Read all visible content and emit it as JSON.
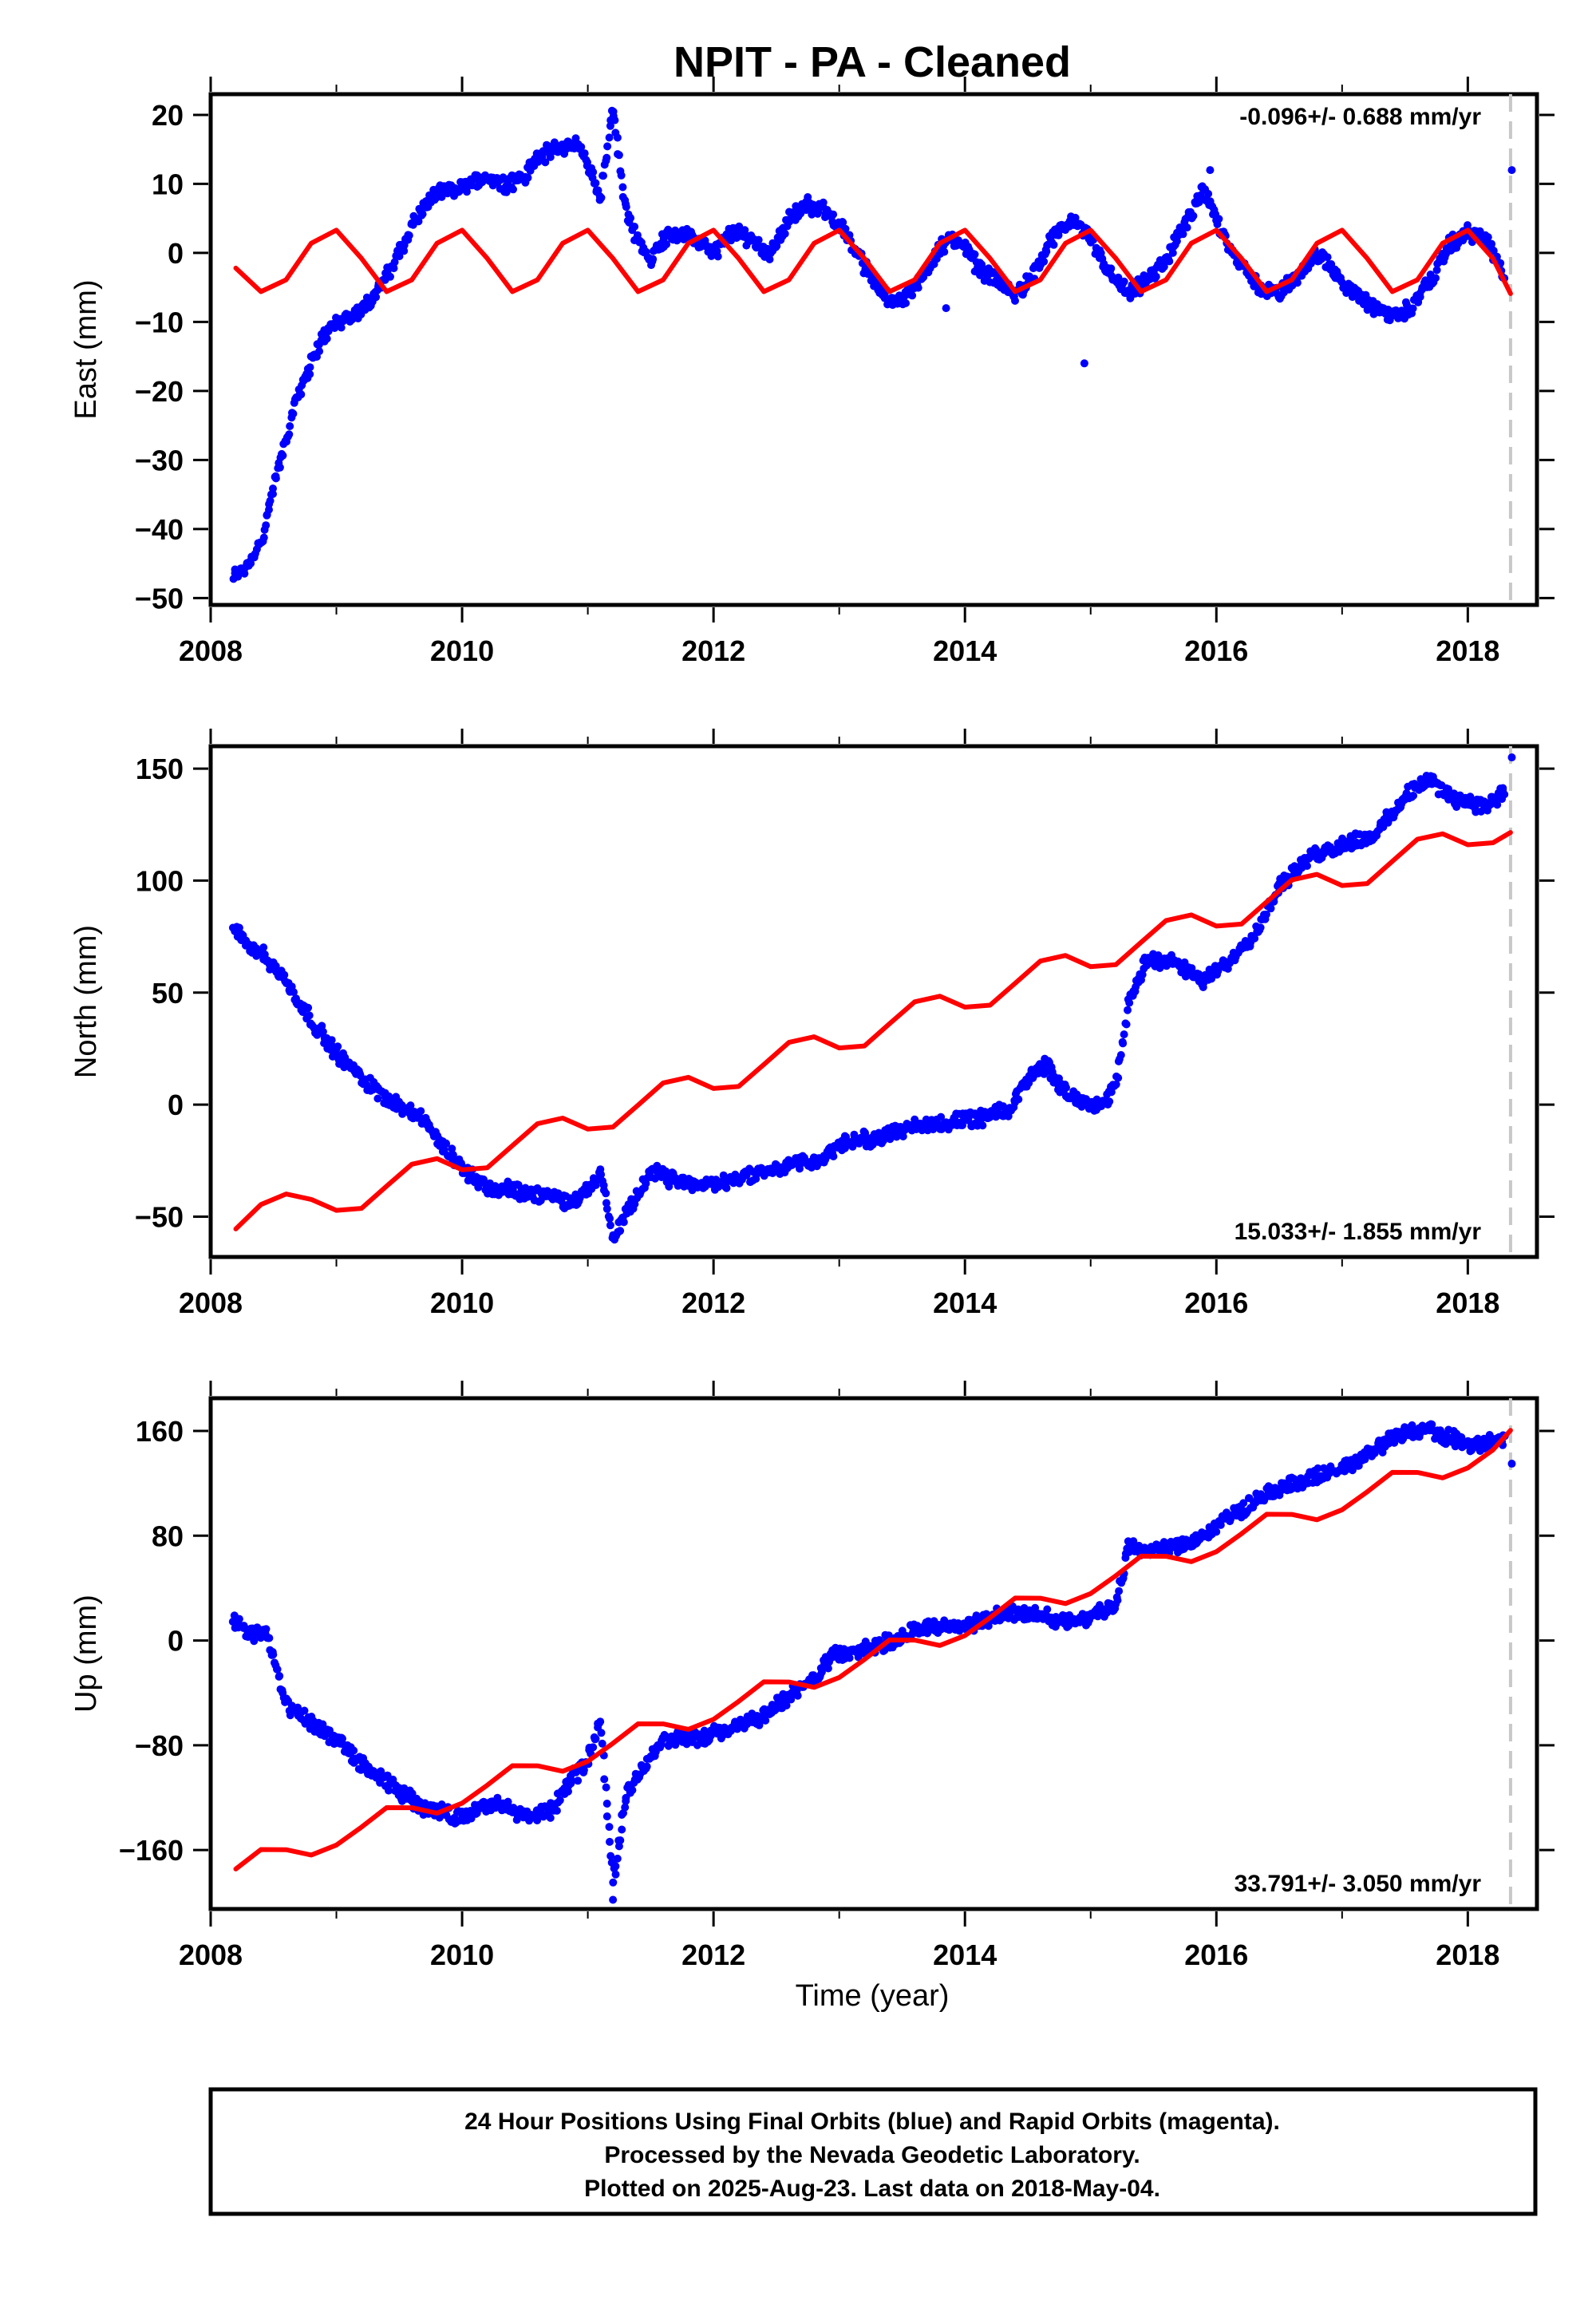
{
  "title": "NPIT  - PA - Cleaned",
  "xlabel": "Time (year)",
  "footer": {
    "line1": "24 Hour Positions Using Final Orbits (blue) and Rapid Orbits (magenta).",
    "line2": "Processed by the Nevada Geodetic Laboratory.",
    "line3": "Plotted on 2025-Aug-23. Last data on 2018-May-04."
  },
  "colors": {
    "observations": "#0000ff",
    "model": "#ff0000",
    "last_data_line": "#c8c8c8"
  },
  "chart_data": [
    {
      "type": "scatter",
      "component": "east",
      "ylabel": "East (mm)",
      "rate_label": "-0.096+/- 0.688 mm/yr",
      "rate_position": "top-right",
      "xlim": [
        2008.0,
        2018.55
      ],
      "ylim": [
        -51,
        23
      ],
      "xticks": [
        2008,
        2010,
        2012,
        2014,
        2016,
        2018
      ],
      "xtick_labels": [
        "2008",
        "2010",
        "2012",
        "2014",
        "2016",
        "2018"
      ],
      "yticks": [
        -50,
        -40,
        -30,
        -20,
        -10,
        0,
        10,
        20
      ],
      "ytick_labels": [
        "−50",
        "−40",
        "−30",
        "−20",
        "−10",
        "0",
        "10",
        "20"
      ],
      "last_data": 2018.34,
      "observations": {
        "name": "Final Orbits",
        "x": [
          2008.18,
          2008.3,
          2008.42,
          2008.5,
          2008.6,
          2008.7,
          2008.8,
          2008.9,
          2009.0,
          2009.15,
          2009.3,
          2009.45,
          2009.6,
          2009.75,
          2009.9,
          2010.05,
          2010.2,
          2010.35,
          2010.5,
          2010.6,
          2010.75,
          2010.9,
          2011.0,
          2011.1,
          2011.2,
          2011.3,
          2011.4,
          2011.5,
          2011.6,
          2011.7,
          2011.85,
          2012.0,
          2012.15,
          2012.3,
          2012.45,
          2012.6,
          2012.75,
          2012.9,
          2013.05,
          2013.2,
          2013.35,
          2013.5,
          2013.65,
          2013.8,
          2013.95,
          2014.1,
          2014.25,
          2014.4,
          2014.55,
          2014.7,
          2014.85,
          2015.0,
          2015.15,
          2015.3,
          2015.45,
          2015.6,
          2015.75,
          2015.9,
          2016.05,
          2016.2,
          2016.35,
          2016.5,
          2016.65,
          2016.8,
          2016.95,
          2017.1,
          2017.25,
          2017.4,
          2017.55,
          2017.7,
          2017.85,
          2018.0,
          2018.15,
          2018.3
        ],
        "y": [
          -47,
          -45,
          -41,
          -34,
          -27,
          -20,
          -16,
          -12,
          -10,
          -9,
          -6,
          -2,
          4,
          8,
          9,
          10,
          11,
          10,
          11,
          14,
          15,
          16,
          13,
          8,
          21,
          6,
          2,
          -1,
          2,
          3,
          2,
          0,
          3,
          2,
          0,
          5,
          7,
          6,
          3,
          -2,
          -6,
          -7,
          -4,
          1,
          2,
          -2,
          -4,
          -6,
          -3,
          2,
          5,
          2,
          -3,
          -6,
          -4,
          -1,
          4,
          9,
          3,
          -2,
          -5,
          -6,
          -3,
          0,
          -3,
          -6,
          -8,
          -9,
          -8,
          -4,
          1,
          3,
          2,
          -4
        ],
        "outliers": [
          {
            "x": 2014.95,
            "y": -16
          },
          {
            "x": 2013.85,
            "y": -8
          },
          {
            "x": 2015.95,
            "y": 12
          },
          {
            "x": 2018.35,
            "y": 12
          }
        ]
      },
      "model": {
        "name": "Rapid Orbits",
        "x": [
          2008.2,
          2008.4,
          2008.6,
          2008.8,
          2009.0,
          2009.2,
          2009.4,
          2009.6,
          2009.8,
          2010.0,
          2010.2,
          2010.4,
          2010.6,
          2010.8,
          2011.0,
          2011.2,
          2011.4,
          2011.6,
          2011.8,
          2012.0,
          2012.2,
          2012.4,
          2012.6,
          2012.8,
          2013.0,
          2013.2,
          2013.4,
          2013.6,
          2013.8,
          2014.0,
          2014.2,
          2014.4,
          2014.6,
          2014.8,
          2015.0,
          2015.2,
          2015.4,
          2015.6,
          2015.8,
          2016.0,
          2016.2,
          2016.4,
          2016.6,
          2016.8,
          2017.0,
          2017.2,
          2017.4,
          2017.6,
          2017.8,
          2018.0,
          2018.2,
          2018.34
        ],
        "y": [
          -2.2,
          -5.6,
          -3.9,
          1.4,
          3.3,
          -0.8,
          -5.6,
          -3.9,
          1.4,
          3.3,
          -0.8,
          -5.6,
          -3.9,
          1.4,
          3.3,
          -0.8,
          -5.6,
          -3.9,
          1.4,
          3.3,
          -0.8,
          -5.6,
          -3.9,
          1.4,
          3.3,
          -0.8,
          -5.6,
          -3.9,
          1.4,
          3.3,
          -0.8,
          -5.6,
          -3.9,
          1.4,
          3.3,
          -0.8,
          -5.6,
          -3.9,
          1.4,
          3.3,
          -0.8,
          -5.6,
          -3.9,
          1.4,
          3.3,
          -0.8,
          -5.6,
          -3.9,
          1.4,
          3.3,
          -0.8,
          -5.9
        ]
      }
    },
    {
      "type": "scatter",
      "component": "north",
      "ylabel": "North (mm)",
      "rate_label": "15.033+/- 1.855 mm/yr",
      "rate_position": "bottom-right",
      "xlim": [
        2008.0,
        2018.55
      ],
      "ylim": [
        -68,
        160
      ],
      "xticks": [
        2008,
        2010,
        2012,
        2014,
        2016,
        2018
      ],
      "xtick_labels": [
        "2008",
        "2010",
        "2012",
        "2014",
        "2016",
        "2018"
      ],
      "yticks": [
        -50,
        0,
        50,
        100,
        150
      ],
      "ytick_labels": [
        "−50",
        "0",
        "50",
        "100",
        "150"
      ],
      "last_data": 2018.34,
      "observations": {
        "name": "Final Orbits",
        "x": [
          2008.18,
          2008.3,
          2008.45,
          2008.6,
          2008.75,
          2008.9,
          2009.05,
          2009.2,
          2009.35,
          2009.5,
          2009.65,
          2009.8,
          2009.95,
          2010.1,
          2010.25,
          2010.4,
          2010.55,
          2010.7,
          2010.85,
          2011.0,
          2011.1,
          2011.2,
          2011.35,
          2011.5,
          2011.65,
          2011.8,
          2011.95,
          2012.1,
          2012.25,
          2012.4,
          2012.55,
          2012.7,
          2012.85,
          2013.0,
          2013.15,
          2013.3,
          2013.45,
          2013.6,
          2013.75,
          2013.9,
          2014.05,
          2014.2,
          2014.35,
          2014.5,
          2014.65,
          2014.8,
          2014.95,
          2015.1,
          2015.2,
          2015.3,
          2015.45,
          2015.6,
          2015.75,
          2015.9,
          2016.05,
          2016.2,
          2016.35,
          2016.5,
          2016.65,
          2016.8,
          2016.95,
          2017.1,
          2017.25,
          2017.4,
          2017.55,
          2017.7,
          2017.85,
          2018.0,
          2018.15,
          2018.3
        ],
        "y": [
          78,
          72,
          65,
          55,
          42,
          30,
          20,
          12,
          5,
          0,
          -5,
          -15,
          -25,
          -33,
          -38,
          -38,
          -40,
          -40,
          -44,
          -38,
          -30,
          -60,
          -45,
          -30,
          -33,
          -35,
          -36,
          -34,
          -32,
          -30,
          -28,
          -26,
          -25,
          -18,
          -16,
          -15,
          -12,
          -10,
          -8,
          -8,
          -7,
          -5,
          -3,
          12,
          18,
          5,
          2,
          0,
          8,
          45,
          65,
          65,
          60,
          55,
          62,
          70,
          80,
          98,
          105,
          112,
          115,
          118,
          120,
          130,
          140,
          145,
          138,
          135,
          133,
          140
        ],
        "outliers": [
          {
            "x": 2018.35,
            "y": 155
          }
        ]
      },
      "model": {
        "name": "Rapid Orbits",
        "x": [
          2008.2,
          2008.4,
          2008.6,
          2008.8,
          2009.0,
          2009.2,
          2009.4,
          2009.6,
          2009.8,
          2010.0,
          2010.2,
          2010.4,
          2010.6,
          2010.8,
          2011.0,
          2011.2,
          2011.4,
          2011.6,
          2011.8,
          2012.0,
          2012.2,
          2012.4,
          2012.6,
          2012.8,
          2013.0,
          2013.2,
          2013.4,
          2013.6,
          2013.8,
          2014.0,
          2014.2,
          2014.4,
          2014.6,
          2014.8,
          2015.0,
          2015.2,
          2015.4,
          2015.6,
          2015.8,
          2016.0,
          2016.2,
          2016.4,
          2016.6,
          2016.8,
          2017.0,
          2017.2,
          2017.4,
          2017.6,
          2017.8,
          2018.0,
          2018.2,
          2018.34
        ],
        "y": [
          -55.5,
          -44.6,
          -39.9,
          -42.3,
          -47.2,
          -46.3,
          -36.4,
          -26.6,
          -24.1,
          -29.1,
          -28.2,
          -18.3,
          -8.5,
          -6.0,
          -10.9,
          -10.0,
          -0.2,
          9.7,
          12.2,
          7.2,
          8.1,
          17.9,
          27.8,
          30.3,
          25.3,
          26.2,
          36.1,
          45.9,
          48.4,
          43.5,
          44.4,
          54.2,
          64.1,
          66.6,
          61.6,
          62.5,
          72.4,
          82.2,
          84.7,
          79.7,
          80.6,
          90.5,
          100.3,
          102.8,
          97.8,
          98.7,
          108.6,
          118.5,
          120.9,
          116.0,
          116.9,
          121.5
        ]
      }
    },
    {
      "type": "scatter",
      "component": "up",
      "ylabel": "Up (mm)",
      "rate_label": "33.791+/- 3.050 mm/yr",
      "rate_position": "bottom-right",
      "xlim": [
        2008.0,
        2018.55
      ],
      "ylim": [
        -205,
        185
      ],
      "xticks": [
        2008,
        2010,
        2012,
        2014,
        2016,
        2018
      ],
      "xtick_labels": [
        "2008",
        "2010",
        "2012",
        "2014",
        "2016",
        "2018"
      ],
      "yticks": [
        -160,
        -80,
        0,
        80,
        160
      ],
      "ytick_labels": [
        "−160",
        "−80",
        "0",
        "80",
        "160"
      ],
      "last_data": 2018.34,
      "observations": {
        "name": "Final Orbits",
        "x": [
          2008.18,
          2008.3,
          2008.45,
          2008.6,
          2008.75,
          2008.9,
          2009.05,
          2009.2,
          2009.35,
          2009.5,
          2009.65,
          2009.8,
          2009.95,
          2010.1,
          2010.25,
          2010.4,
          2010.55,
          2010.7,
          2010.85,
          2011.0,
          2011.1,
          2011.2,
          2011.3,
          2011.45,
          2011.6,
          2011.75,
          2011.9,
          2012.05,
          2012.2,
          2012.35,
          2012.5,
          2012.65,
          2012.8,
          2012.95,
          2013.1,
          2013.25,
          2013.4,
          2013.55,
          2013.7,
          2013.85,
          2014.0,
          2014.15,
          2014.3,
          2014.45,
          2014.6,
          2014.75,
          2014.9,
          2015.05,
          2015.2,
          2015.3,
          2015.45,
          2015.6,
          2015.75,
          2015.9,
          2016.05,
          2016.2,
          2016.35,
          2016.5,
          2016.65,
          2016.8,
          2016.95,
          2017.1,
          2017.25,
          2017.4,
          2017.55,
          2017.7,
          2017.85,
          2018.0,
          2018.15,
          2018.3
        ],
        "y": [
          15,
          5,
          5,
          -50,
          -60,
          -70,
          -80,
          -95,
          -105,
          -115,
          -125,
          -130,
          -135,
          -130,
          -125,
          -130,
          -135,
          -130,
          -110,
          -90,
          -60,
          -185,
          -120,
          -95,
          -75,
          -75,
          -75,
          -70,
          -65,
          -60,
          -50,
          -40,
          -30,
          -10,
          -10,
          -5,
          0,
          5,
          10,
          10,
          12,
          15,
          20,
          20,
          20,
          15,
          15,
          20,
          25,
          70,
          70,
          70,
          75,
          80,
          90,
          100,
          110,
          115,
          120,
          125,
          130,
          135,
          145,
          155,
          160,
          160,
          155,
          150,
          150,
          155
        ],
        "outliers": [
          {
            "x": 2011.2,
            "y": -198
          },
          {
            "x": 2018.35,
            "y": 135
          }
        ]
      },
      "model": {
        "name": "Rapid Orbits",
        "x": [
          2008.2,
          2008.4,
          2008.6,
          2008.8,
          2009.0,
          2009.2,
          2009.4,
          2009.6,
          2009.8,
          2010.0,
          2010.2,
          2010.4,
          2010.6,
          2010.8,
          2011.0,
          2011.2,
          2011.4,
          2011.6,
          2011.8,
          2012.0,
          2012.2,
          2012.4,
          2012.6,
          2012.8,
          2013.0,
          2013.2,
          2013.4,
          2013.6,
          2013.8,
          2014.0,
          2014.2,
          2014.4,
          2014.6,
          2014.8,
          2015.0,
          2015.2,
          2015.4,
          2015.6,
          2015.8,
          2016.0,
          2016.2,
          2016.4,
          2016.6,
          2016.8,
          2017.0,
          2017.2,
          2017.4,
          2017.6,
          2017.8,
          2018.0,
          2018.2,
          2018.34
        ],
        "y": [
          -174.5,
          -159.6,
          -159.7,
          -163.8,
          -156.2,
          -142.5,
          -127.6,
          -127.7,
          -131.8,
          -124.2,
          -110.5,
          -95.6,
          -95.7,
          -99.8,
          -92.2,
          -78.5,
          -63.6,
          -63.7,
          -67.8,
          -60.2,
          -46.5,
          -31.6,
          -31.7,
          -35.8,
          -28.2,
          -14.5,
          0.4,
          0.3,
          -3.8,
          3.8,
          17.5,
          32.4,
          32.3,
          28.2,
          35.8,
          49.5,
          64.4,
          64.3,
          60.2,
          67.8,
          81.5,
          96.4,
          96.3,
          92.2,
          99.8,
          113.5,
          128.4,
          128.3,
          124.2,
          131.8,
          145.5,
          160.5
        ]
      }
    }
  ]
}
